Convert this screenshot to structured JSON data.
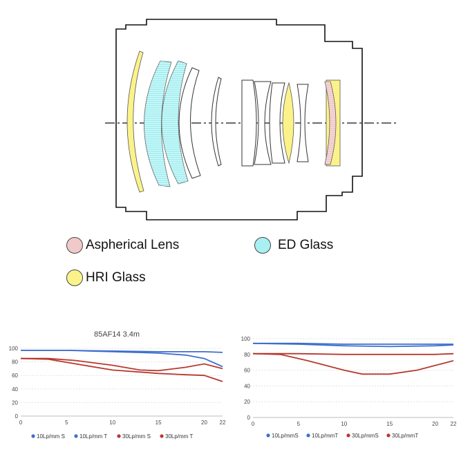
{
  "legend": {
    "items": [
      {
        "label": "Aspherical Lens",
        "color": "#f2c9c9"
      },
      {
        "label": "ED Glass",
        "color": "#a8f0f2"
      },
      {
        "label": "HRI Glass",
        "color": "#fbf38a"
      }
    ]
  },
  "colors": {
    "outline": "#111111",
    "aspherical": "#f2c9c9",
    "ed": "#a8f0f2",
    "hri": "#fbf38a",
    "blue_series": "#3d6fcc",
    "red_series": "#b8382e",
    "grid": "#e2e2e2"
  },
  "chart_data": [
    {
      "type": "line",
      "title": "85AF14 3.4m",
      "x_ticks": [
        "0",
        "5",
        "10",
        "15",
        "20",
        "22"
      ],
      "y_ticks": [
        "0",
        "20",
        "40",
        "60",
        "80",
        "100"
      ],
      "xlim": [
        0,
        22
      ],
      "ylim": [
        0,
        100
      ],
      "series": [
        {
          "name": "10Lp/mm S",
          "color": "#3d6fcc",
          "points": [
            [
              0,
              97
            ],
            [
              5,
              97
            ],
            [
              10,
              96
            ],
            [
              15,
              95
            ],
            [
              20,
              95
            ],
            [
              22,
              94
            ]
          ]
        },
        {
          "name": "10Lp/mm T",
          "color": "#3d6fcc",
          "points": [
            [
              0,
              97
            ],
            [
              5,
              97
            ],
            [
              10,
              95
            ],
            [
              15,
              93
            ],
            [
              18,
              90
            ],
            [
              20,
              85
            ],
            [
              22,
              73
            ]
          ]
        },
        {
          "name": "30Lp/mm S",
          "color": "#b8382e",
          "points": [
            [
              0,
              85
            ],
            [
              3,
              85
            ],
            [
              6,
              82
            ],
            [
              10,
              75
            ],
            [
              13,
              68
            ],
            [
              15,
              67
            ],
            [
              18,
              72
            ],
            [
              20,
              77
            ],
            [
              22,
              70
            ]
          ]
        },
        {
          "name": "30Lp/mm T",
          "color": "#b8382e",
          "points": [
            [
              0,
              85
            ],
            [
              3,
              84
            ],
            [
              6,
              77
            ],
            [
              10,
              68
            ],
            [
              13,
              65
            ],
            [
              15,
              63
            ],
            [
              18,
              61
            ],
            [
              20,
              60
            ],
            [
              22,
              51
            ]
          ]
        }
      ]
    },
    {
      "type": "line",
      "title": "",
      "x_ticks": [
        "0",
        "5",
        "10",
        "15",
        "20",
        "22"
      ],
      "y_ticks": [
        "0",
        "20",
        "40",
        "60",
        "80",
        "100"
      ],
      "xlim": [
        0,
        22
      ],
      "ylim": [
        0,
        100
      ],
      "series": [
        {
          "name": "10Lp/mmS",
          "color": "#3d6fcc",
          "points": [
            [
              0,
              94
            ],
            [
              5,
              94
            ],
            [
              10,
              93
            ],
            [
              15,
              93
            ],
            [
              20,
              93
            ],
            [
              22,
              93
            ]
          ]
        },
        {
          "name": "10Lp/mmT",
          "color": "#3d6fcc",
          "points": [
            [
              0,
              94
            ],
            [
              5,
              93
            ],
            [
              10,
              91
            ],
            [
              15,
              90
            ],
            [
              20,
              91
            ],
            [
              22,
              92
            ]
          ]
        },
        {
          "name": "30Lp/mmS",
          "color": "#b8382e",
          "points": [
            [
              0,
              81
            ],
            [
              5,
              81
            ],
            [
              10,
              80
            ],
            [
              15,
              80
            ],
            [
              20,
              80
            ],
            [
              22,
              81
            ]
          ]
        },
        {
          "name": "30Lp/mmT",
          "color": "#b8382e",
          "points": [
            [
              0,
              81
            ],
            [
              3,
              80
            ],
            [
              6,
              72
            ],
            [
              10,
              60
            ],
            [
              12,
              55
            ],
            [
              15,
              55
            ],
            [
              18,
              60
            ],
            [
              20,
              66
            ],
            [
              22,
              72
            ]
          ]
        }
      ]
    }
  ]
}
